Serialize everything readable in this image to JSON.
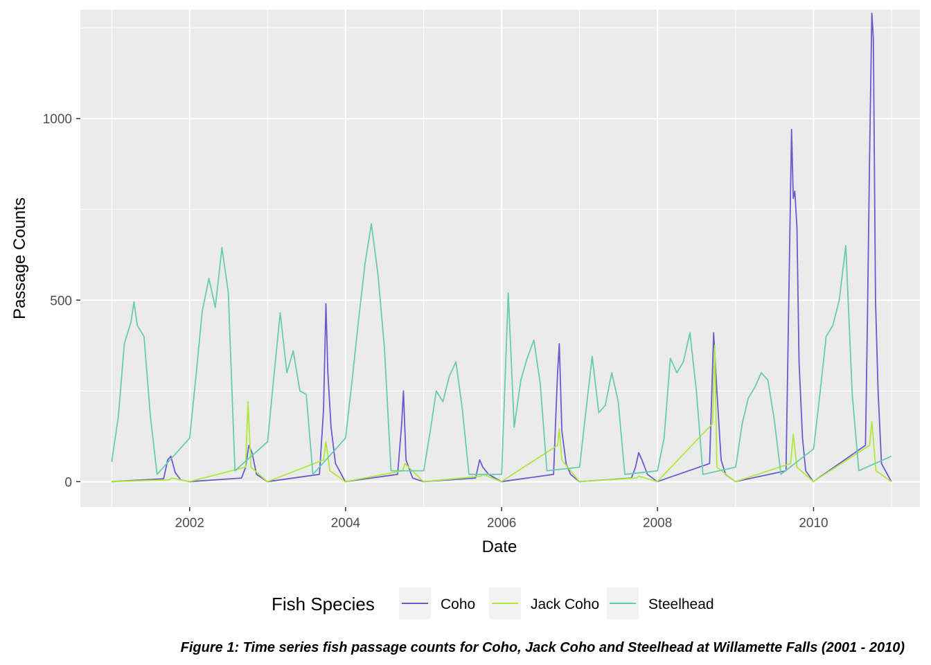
{
  "chart_data": {
    "type": "line",
    "xlabel": "Date",
    "ylabel": "Passage Counts",
    "x_axis_type": "date",
    "xlim": [
      "2000-08-07",
      "2011-05-14"
    ],
    "ylim": [
      -70,
      1300
    ],
    "x_ticks": [
      "2002-01-01",
      "2004-01-01",
      "2006-01-01",
      "2008-01-01",
      "2010-01-01"
    ],
    "x_tick_labels": [
      "2002",
      "2004",
      "2006",
      "2008",
      "2010"
    ],
    "x_minor_ticks": [
      "2001-01-01",
      "2003-01-01",
      "2005-01-01",
      "2007-01-01",
      "2009-01-01",
      "2011-01-01"
    ],
    "y_ticks": [
      0,
      500,
      1000
    ],
    "y_tick_labels": [
      "0",
      "500",
      "1000"
    ],
    "y_minor_ticks": [
      250,
      750,
      1250
    ],
    "grid": true,
    "legend": {
      "title": "Fish Species",
      "position": "bottom"
    },
    "caption": "Figure 1: Time series fish passage counts for Coho, Jack Coho and Steelhead at Willamette Falls (2001 - 2010)",
    "series": [
      {
        "name": "Coho",
        "color": "#6A5ACD",
        "seasonal_pattern": "near 0 except Aug–Dec",
        "points": [
          [
            "2001-01-01",
            0
          ],
          [
            "2001-09-01",
            8
          ],
          [
            "2001-09-20",
            60
          ],
          [
            "2001-10-05",
            70
          ],
          [
            "2001-10-25",
            25
          ],
          [
            "2001-11-20",
            5
          ],
          [
            "2001-12-31",
            0
          ],
          [
            "2002-09-01",
            10
          ],
          [
            "2002-09-20",
            40
          ],
          [
            "2002-10-05",
            100
          ],
          [
            "2002-10-20",
            80
          ],
          [
            "2002-11-10",
            20
          ],
          [
            "2002-12-31",
            0
          ],
          [
            "2003-09-01",
            20
          ],
          [
            "2003-09-20",
            200
          ],
          [
            "2003-10-01",
            490
          ],
          [
            "2003-10-10",
            300
          ],
          [
            "2003-10-25",
            150
          ],
          [
            "2003-11-15",
            50
          ],
          [
            "2003-12-31",
            0
          ],
          [
            "2004-09-01",
            20
          ],
          [
            "2004-09-20",
            160
          ],
          [
            "2004-09-28",
            250
          ],
          [
            "2004-10-10",
            60
          ],
          [
            "2004-11-10",
            10
          ],
          [
            "2004-12-31",
            0
          ],
          [
            "2005-09-01",
            10
          ],
          [
            "2005-09-20",
            60
          ],
          [
            "2005-10-05",
            40
          ],
          [
            "2005-11-01",
            20
          ],
          [
            "2005-12-31",
            0
          ],
          [
            "2006-09-01",
            20
          ],
          [
            "2006-09-20",
            300
          ],
          [
            "2006-09-28",
            380
          ],
          [
            "2006-10-10",
            140
          ],
          [
            "2006-10-30",
            50
          ],
          [
            "2006-11-20",
            20
          ],
          [
            "2006-12-31",
            0
          ],
          [
            "2007-09-01",
            10
          ],
          [
            "2007-09-20",
            40
          ],
          [
            "2007-10-05",
            80
          ],
          [
            "2007-10-20",
            60
          ],
          [
            "2007-11-15",
            20
          ],
          [
            "2007-12-31",
            0
          ],
          [
            "2008-09-01",
            50
          ],
          [
            "2008-09-20",
            410
          ],
          [
            "2008-10-05",
            250
          ],
          [
            "2008-10-25",
            60
          ],
          [
            "2008-11-15",
            20
          ],
          [
            "2008-12-31",
            0
          ],
          [
            "2009-08-25",
            30
          ],
          [
            "2009-09-10",
            620
          ],
          [
            "2009-09-20",
            970
          ],
          [
            "2009-09-28",
            780
          ],
          [
            "2009-10-05",
            800
          ],
          [
            "2009-10-15",
            700
          ],
          [
            "2009-10-25",
            330
          ],
          [
            "2009-11-10",
            120
          ],
          [
            "2009-11-25",
            30
          ],
          [
            "2009-12-31",
            0
          ],
          [
            "2010-09-01",
            100
          ],
          [
            "2010-09-10",
            440
          ],
          [
            "2010-09-20",
            890
          ],
          [
            "2010-10-01",
            1290
          ],
          [
            "2010-10-08",
            1220
          ],
          [
            "2010-10-18",
            500
          ],
          [
            "2010-10-30",
            250
          ],
          [
            "2010-11-15",
            50
          ],
          [
            "2010-12-31",
            0
          ]
        ]
      },
      {
        "name": "Jack Coho",
        "color": "#ADE83B",
        "seasonal_pattern": "near 0 except Sep–Oct",
        "points": [
          [
            "2001-01-01",
            0
          ],
          [
            "2001-09-25",
            5
          ],
          [
            "2001-10-10",
            10
          ],
          [
            "2001-12-31",
            0
          ],
          [
            "2002-09-20",
            40
          ],
          [
            "2002-10-01",
            220
          ],
          [
            "2002-10-15",
            40
          ],
          [
            "2002-12-31",
            0
          ],
          [
            "2003-09-20",
            60
          ],
          [
            "2003-10-01",
            110
          ],
          [
            "2003-10-20",
            30
          ],
          [
            "2003-12-31",
            0
          ],
          [
            "2004-09-25",
            30
          ],
          [
            "2004-10-05",
            50
          ],
          [
            "2004-12-31",
            0
          ],
          [
            "2005-09-25",
            15
          ],
          [
            "2005-10-05",
            20
          ],
          [
            "2005-12-31",
            0
          ],
          [
            "2006-09-20",
            100
          ],
          [
            "2006-09-28",
            145
          ],
          [
            "2006-10-10",
            60
          ],
          [
            "2006-12-31",
            0
          ],
          [
            "2007-09-25",
            10
          ],
          [
            "2007-10-05",
            15
          ],
          [
            "2007-12-31",
            0
          ],
          [
            "2008-09-15",
            160
          ],
          [
            "2008-09-25",
            375
          ],
          [
            "2008-10-05",
            40
          ],
          [
            "2008-12-31",
            0
          ],
          [
            "2009-09-15",
            50
          ],
          [
            "2009-09-28",
            130
          ],
          [
            "2009-10-15",
            40
          ],
          [
            "2009-12-31",
            0
          ],
          [
            "2010-09-20",
            100
          ],
          [
            "2010-10-01",
            165
          ],
          [
            "2010-10-20",
            30
          ],
          [
            "2010-12-31",
            0
          ]
        ]
      },
      {
        "name": "Steelhead",
        "color": "#66CDAA",
        "seasonal_pattern": "peaks roughly Feb–Jul each year",
        "points": [
          [
            "2001-01-01",
            55
          ],
          [
            "2001-02-01",
            180
          ],
          [
            "2001-03-01",
            380
          ],
          [
            "2001-04-01",
            440
          ],
          [
            "2001-04-15",
            495
          ],
          [
            "2001-05-01",
            430
          ],
          [
            "2001-06-01",
            400
          ],
          [
            "2001-07-01",
            180
          ],
          [
            "2001-08-01",
            20
          ],
          [
            "2002-01-01",
            120
          ],
          [
            "2002-02-01",
            300
          ],
          [
            "2002-03-01",
            470
          ],
          [
            "2002-04-01",
            560
          ],
          [
            "2002-05-01",
            480
          ],
          [
            "2002-06-01",
            645
          ],
          [
            "2002-07-01",
            520
          ],
          [
            "2002-08-01",
            30
          ],
          [
            "2003-01-01",
            110
          ],
          [
            "2003-02-01",
            300
          ],
          [
            "2003-03-01",
            465
          ],
          [
            "2003-04-01",
            300
          ],
          [
            "2003-05-01",
            360
          ],
          [
            "2003-06-01",
            250
          ],
          [
            "2003-07-01",
            240
          ],
          [
            "2003-08-01",
            20
          ],
          [
            "2004-01-01",
            120
          ],
          [
            "2004-02-01",
            280
          ],
          [
            "2004-03-01",
            440
          ],
          [
            "2004-04-01",
            600
          ],
          [
            "2004-05-01",
            710
          ],
          [
            "2004-06-01",
            570
          ],
          [
            "2004-07-01",
            370
          ],
          [
            "2004-08-01",
            30
          ],
          [
            "2005-01-01",
            30
          ],
          [
            "2005-02-01",
            140
          ],
          [
            "2005-03-01",
            250
          ],
          [
            "2005-04-01",
            220
          ],
          [
            "2005-05-01",
            290
          ],
          [
            "2005-06-01",
            330
          ],
          [
            "2005-07-01",
            200
          ],
          [
            "2005-08-01",
            20
          ],
          [
            "2006-01-01",
            20
          ],
          [
            "2006-02-01",
            520
          ],
          [
            "2006-03-01",
            150
          ],
          [
            "2006-04-01",
            280
          ],
          [
            "2006-05-01",
            340
          ],
          [
            "2006-06-01",
            390
          ],
          [
            "2006-07-01",
            270
          ],
          [
            "2006-08-01",
            30
          ],
          [
            "2007-01-01",
            40
          ],
          [
            "2007-02-01",
            200
          ],
          [
            "2007-03-01",
            345
          ],
          [
            "2007-04-01",
            190
          ],
          [
            "2007-05-01",
            210
          ],
          [
            "2007-06-01",
            300
          ],
          [
            "2007-07-01",
            220
          ],
          [
            "2007-08-01",
            20
          ],
          [
            "2008-01-01",
            30
          ],
          [
            "2008-02-01",
            120
          ],
          [
            "2008-03-01",
            340
          ],
          [
            "2008-04-01",
            300
          ],
          [
            "2008-05-01",
            330
          ],
          [
            "2008-06-01",
            410
          ],
          [
            "2008-07-01",
            250
          ],
          [
            "2008-08-01",
            20
          ],
          [
            "2009-01-01",
            40
          ],
          [
            "2009-02-01",
            160
          ],
          [
            "2009-03-01",
            230
          ],
          [
            "2009-04-01",
            260
          ],
          [
            "2009-05-01",
            300
          ],
          [
            "2009-06-01",
            280
          ],
          [
            "2009-07-01",
            170
          ],
          [
            "2009-08-01",
            20
          ],
          [
            "2010-01-01",
            90
          ],
          [
            "2010-02-01",
            250
          ],
          [
            "2010-03-01",
            400
          ],
          [
            "2010-04-01",
            430
          ],
          [
            "2010-05-01",
            500
          ],
          [
            "2010-06-01",
            650
          ],
          [
            "2010-07-01",
            240
          ],
          [
            "2010-08-01",
            30
          ],
          [
            "2010-12-31",
            70
          ]
        ]
      }
    ]
  }
}
